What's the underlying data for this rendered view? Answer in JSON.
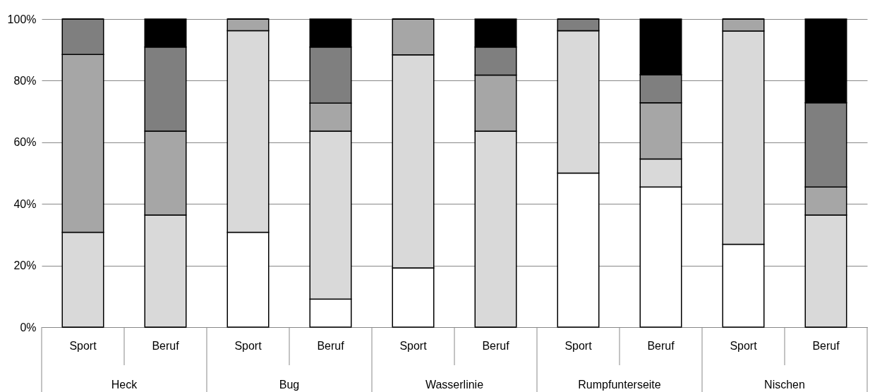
{
  "chart_data": {
    "type": "bar",
    "stacked": true,
    "categories": [
      "Sport",
      "Beruf",
      "Sport",
      "Beruf",
      "Sport",
      "Beruf",
      "Sport",
      "Beruf",
      "Sport",
      "Beruf"
    ],
    "annotations": [
      "Heck",
      "Bug",
      "Wasserlinie",
      "Rumpfunterseite",
      "Nischen"
    ],
    "series": [
      {
        "color": "#ffffff",
        "values": [
          0,
          0,
          30.8,
          9.1,
          19.2,
          0,
          50,
          45.5,
          26.9,
          0
        ]
      },
      {
        "color": "#d9d9d9",
        "values": [
          30.8,
          36.4,
          65.4,
          54.5,
          69.2,
          63.6,
          46.2,
          9.1,
          69.2,
          36.4
        ]
      },
      {
        "color": "#a6a6a6",
        "values": [
          57.7,
          27.2,
          3.8,
          9.1,
          11.6,
          18.2,
          0,
          18.2,
          3.9,
          9.1
        ]
      },
      {
        "color": "#7f7f7f",
        "values": [
          11.5,
          27.3,
          0,
          18.2,
          0,
          9.1,
          3.8,
          9.1,
          0,
          27.3
        ]
      },
      {
        "color": "#000000",
        "values": [
          0,
          9.1,
          0,
          9.1,
          0,
          9.1,
          0,
          18.1,
          0,
          27.2
        ]
      }
    ],
    "ylim": [
      0,
      100
    ],
    "yticks": [
      {
        "value": 0,
        "label": "0%"
      },
      {
        "value": 20,
        "label": "20%"
      },
      {
        "value": 40,
        "label": "40%"
      },
      {
        "value": 60,
        "label": "60%"
      },
      {
        "value": 80,
        "label": "80%"
      },
      {
        "value": 100,
        "label": "100%"
      }
    ],
    "grid": "y",
    "legend": false
  }
}
